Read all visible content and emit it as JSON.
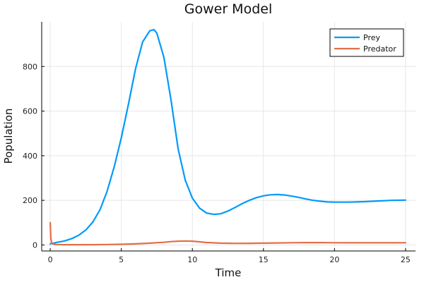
{
  "chart_data": {
    "type": "line",
    "title": "Gower Model",
    "xlabel": "Time",
    "ylabel": "Population",
    "xlim": [
      -0.6,
      25.7
    ],
    "ylim": [
      -27,
      1000
    ],
    "xticks": [
      0,
      5,
      10,
      15,
      20,
      25
    ],
    "yticks": [
      0,
      200,
      400,
      600,
      800
    ],
    "grid": true,
    "legend_position": "top-right",
    "series": [
      {
        "name": "Prey",
        "color": "#009AFA",
        "x": [
          0,
          0.5,
          1,
          1.5,
          2,
          2.5,
          3,
          3.5,
          4,
          4.5,
          5,
          5.5,
          6,
          6.5,
          7,
          7.3,
          7.5,
          8,
          8.5,
          9,
          9.5,
          10,
          10.5,
          11,
          11.5,
          12,
          12.5,
          13,
          13.5,
          14,
          14.5,
          15,
          15.5,
          16,
          16.5,
          17,
          17.5,
          18,
          18.5,
          19,
          19.5,
          20,
          21,
          22,
          23,
          24,
          25
        ],
        "y": [
          5,
          12,
          18,
          28,
          43,
          67,
          103,
          158,
          240,
          350,
          480,
          630,
          790,
          910,
          960,
          965,
          950,
          840,
          650,
          430,
          290,
          210,
          165,
          143,
          137,
          140,
          152,
          168,
          185,
          200,
          212,
          220,
          225,
          226,
          224,
          219,
          213,
          206,
          200,
          196,
          193,
          192,
          192,
          194,
          197,
          200,
          201
        ]
      },
      {
        "name": "Predator",
        "color": "#E26F46",
        "x": [
          0,
          0.04,
          0.1,
          0.2,
          0.4,
          0.7,
          1,
          2,
          3,
          4,
          5,
          6,
          7,
          8,
          8.5,
          9,
          9.5,
          10,
          10.5,
          11,
          12,
          13,
          14,
          15,
          16,
          17,
          18,
          19,
          20,
          21,
          22,
          23,
          24,
          25
        ],
        "y": [
          100,
          30,
          10,
          4,
          2,
          1.5,
          1,
          1,
          1.2,
          2,
          3,
          5,
          8,
          12,
          15,
          17,
          18,
          17,
          14,
          11,
          8,
          7,
          7.5,
          8,
          9,
          10,
          10.5,
          10.5,
          10,
          9.8,
          9.6,
          9.6,
          9.8,
          10
        ]
      }
    ]
  }
}
